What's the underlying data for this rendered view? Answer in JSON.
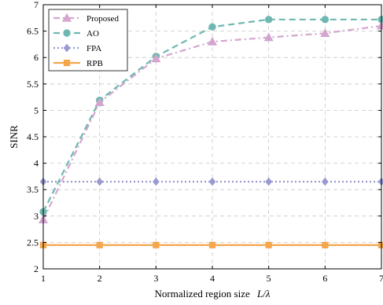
{
  "chart_data": {
    "type": "line",
    "x": [
      1,
      2,
      3,
      4,
      5,
      6,
      7
    ],
    "xlabel_text": "Normalized region size",
    "xlabel_math": "L/λ",
    "ylabel": "SINR",
    "xlim": [
      1,
      7
    ],
    "ylim": [
      2,
      7
    ],
    "xticks": [
      "1",
      "2",
      "3",
      "4",
      "5",
      "6",
      "7"
    ],
    "yticks": [
      "2",
      "2.5",
      "3",
      "3.5",
      "4",
      "4.5",
      "5",
      "5.5",
      "6",
      "6.5",
      "7"
    ],
    "grid": true,
    "legend_position": "top-left",
    "series": [
      {
        "name": "Proposed",
        "values": [
          2.93,
          5.15,
          5.98,
          6.3,
          6.38,
          6.46,
          6.6
        ],
        "color": "#d4a6cf",
        "dash": "dashdot",
        "marker": "triangle"
      },
      {
        "name": "AO",
        "values": [
          3.08,
          5.19,
          6.02,
          6.58,
          6.72,
          6.72,
          6.72
        ],
        "color": "#6fb7b1",
        "dash": "dashed",
        "marker": "circle"
      },
      {
        "name": "FPA",
        "values": [
          3.65,
          3.65,
          3.65,
          3.65,
          3.65,
          3.65,
          3.65
        ],
        "color": "#9a9ad0",
        "dash": "dotted",
        "marker": "diamond"
      },
      {
        "name": "RPB",
        "values": [
          2.45,
          2.45,
          2.45,
          2.45,
          2.45,
          2.45,
          2.45
        ],
        "color": "#f5a54a",
        "dash": "solid",
        "marker": "square"
      }
    ]
  }
}
